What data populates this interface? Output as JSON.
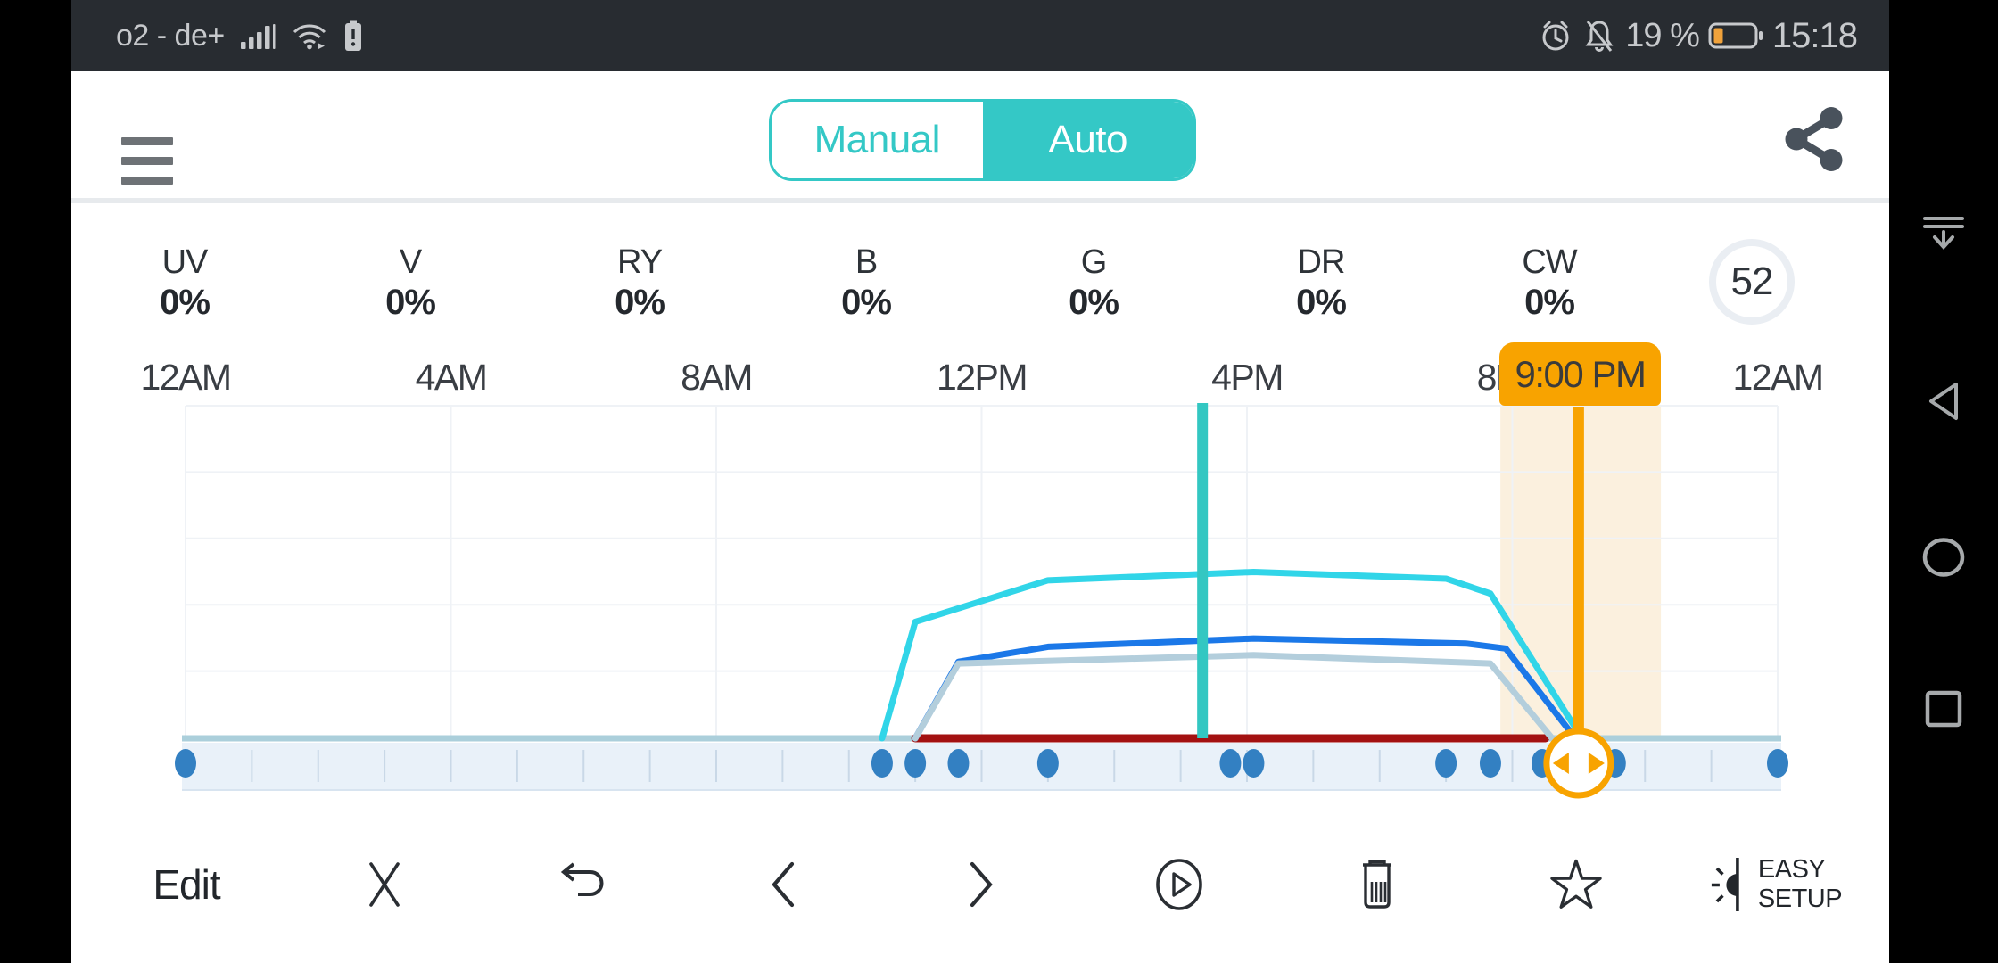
{
  "status_bar": {
    "carrier": "o2 - de+",
    "left_icons": [
      "signal",
      "wifi",
      "battery-alert"
    ],
    "right_icons": [
      "alarm-clock",
      "notifications-off"
    ],
    "battery_text": "19 %",
    "time": "15:18",
    "bg_color": "#282C31",
    "icon_color": "#C7C9CC",
    "battery_fill_color": "#F0A23B"
  },
  "header": {
    "menu_icon": "hamburger",
    "share_icon": "share",
    "mode_toggle": {
      "options": [
        "Manual",
        "Auto"
      ],
      "selected": "Auto",
      "accent_color": "#34C8C6"
    }
  },
  "channels": [
    {
      "label": "UV",
      "value": "0%"
    },
    {
      "label": "V",
      "value": "0%"
    },
    {
      "label": "RY",
      "value": "0%"
    },
    {
      "label": "B",
      "value": "0%"
    },
    {
      "label": "G",
      "value": "0%"
    },
    {
      "label": "DR",
      "value": "0%"
    },
    {
      "label": "CW",
      "value": "0%"
    }
  ],
  "intensity_badge": {
    "value": "52"
  },
  "chart_data": {
    "type": "line",
    "x_axis": {
      "labels": [
        {
          "text": "12AM",
          "hour": 0
        },
        {
          "text": "4AM",
          "hour": 4
        },
        {
          "text": "8AM",
          "hour": 8
        },
        {
          "text": "12PM",
          "hour": 12
        },
        {
          "text": "4PM",
          "hour": 16
        },
        {
          "text": "8PM",
          "hour": 20
        },
        {
          "text": "12AM",
          "hour": 24
        }
      ],
      "range_hours": [
        0,
        24
      ],
      "gridline_hours": [
        0,
        4,
        8,
        12,
        16,
        20,
        24
      ]
    },
    "y_axis": {
      "range_percent": [
        0,
        100
      ],
      "h_gridlines": 5,
      "grid_color": "#EFF2F6"
    },
    "series": [
      {
        "name": "deep-red-channel",
        "color": "#A31111",
        "width": 9,
        "points": [
          [
            11,
            0
          ],
          [
            20.5,
            0
          ]
        ]
      },
      {
        "name": "blue-channel",
        "color": "#1B78E8",
        "width": 7,
        "points": [
          [
            11,
            0
          ],
          [
            11.65,
            23
          ],
          [
            13,
            27.5
          ],
          [
            16.1,
            30
          ],
          [
            19.3,
            28.5
          ],
          [
            19.9,
            27
          ],
          [
            20.95,
            0
          ]
        ]
      },
      {
        "name": "light-blue-channel",
        "color": "#B3CEDC",
        "width": 7,
        "points": [
          [
            11,
            0
          ],
          [
            11.65,
            22.5
          ],
          [
            16.1,
            25
          ],
          [
            19.67,
            22.5
          ],
          [
            20.6,
            0
          ]
        ]
      },
      {
        "name": "cyan-channel",
        "color": "#31D5E8",
        "width": 7,
        "points": [
          [
            10.5,
            0
          ],
          [
            11,
            35
          ],
          [
            13,
            47.5
          ],
          [
            16.1,
            50
          ],
          [
            19,
            48
          ],
          [
            19.67,
            43.5
          ],
          [
            21.05,
            0
          ]
        ]
      }
    ],
    "baseline_color": "#ABCFDB",
    "current_time_marker": {
      "hour": 15.33,
      "color": "#33C7C2"
    },
    "selection_marker": {
      "hour": 21,
      "label": "9:00 PM",
      "color": "#F8A300",
      "band_hours": [
        19.82,
        22.24
      ],
      "band_color": "#FBF0DE"
    },
    "schedule_dots_hours": [
      0,
      10.5,
      11,
      11.65,
      13,
      15.75,
      16.1,
      19,
      19.67,
      20.45,
      21.55,
      24
    ],
    "dot_color": "#3380C2",
    "strip_color": "#E9F1F9",
    "strip_tick_color": "#C9D8E7"
  },
  "toolbar": {
    "items": [
      {
        "name": "edit",
        "type": "text",
        "label": "Edit"
      },
      {
        "name": "close",
        "type": "icon",
        "icon": "close"
      },
      {
        "name": "undo",
        "type": "icon",
        "icon": "undo"
      },
      {
        "name": "previous",
        "type": "icon",
        "icon": "chevron-left"
      },
      {
        "name": "next",
        "type": "icon",
        "icon": "chevron-right"
      },
      {
        "name": "preview-play",
        "type": "icon",
        "icon": "play"
      },
      {
        "name": "delete",
        "type": "icon",
        "icon": "trash"
      },
      {
        "name": "favorite",
        "type": "icon",
        "icon": "star"
      },
      {
        "name": "easy-setup",
        "type": "icon-text",
        "icon": "easy-setup",
        "lines": [
          "EASY",
          "SETUP"
        ]
      }
    ]
  },
  "nav_bar": {
    "items": [
      {
        "name": "collapse",
        "icon": "collapse"
      },
      {
        "name": "back",
        "icon": "nav-back"
      },
      {
        "name": "home",
        "icon": "nav-home"
      },
      {
        "name": "recents",
        "icon": "nav-recents"
      }
    ]
  }
}
